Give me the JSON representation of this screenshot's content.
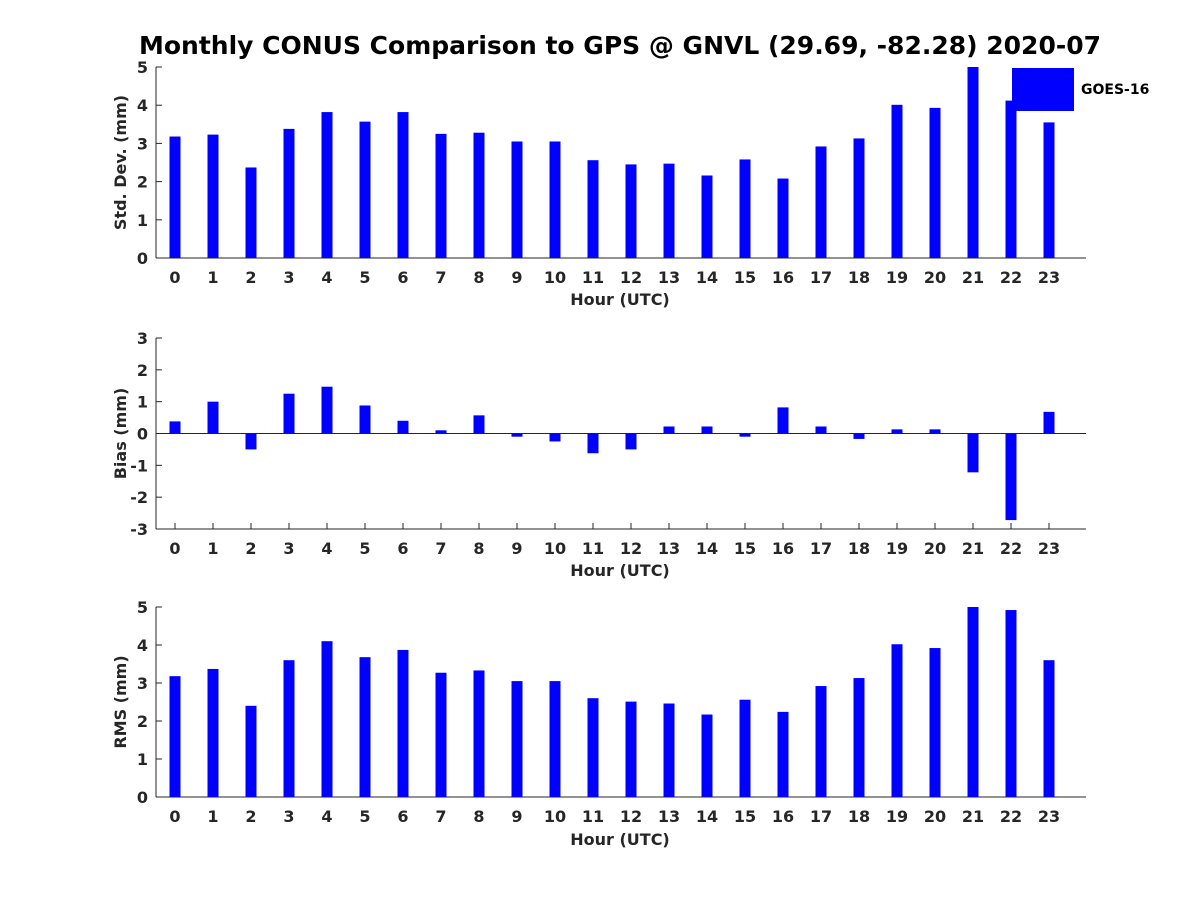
{
  "title": "Monthly CONUS Comparison to GPS @ GNVL (29.69, -82.28) 2020-07",
  "legend": {
    "label": "GOES-16",
    "color": "#0000ff",
    "placement": "top-right"
  },
  "chart_data": [
    {
      "type": "bar",
      "xlabel": "Hour (UTC)",
      "ylabel": "Std. Dev. (mm)",
      "ylim": [
        0,
        5
      ],
      "yticks": [
        0,
        1,
        2,
        3,
        4,
        5
      ],
      "categories": [
        "0",
        "1",
        "2",
        "3",
        "4",
        "5",
        "6",
        "7",
        "8",
        "9",
        "10",
        "11",
        "12",
        "13",
        "14",
        "15",
        "16",
        "17",
        "18",
        "19",
        "20",
        "21",
        "22",
        "23"
      ],
      "series": [
        {
          "name": "GOES-16",
          "color": "#0000ff",
          "values": [
            3.18,
            3.23,
            2.37,
            3.38,
            3.82,
            3.57,
            3.82,
            3.25,
            3.28,
            3.05,
            3.05,
            2.56,
            2.45,
            2.47,
            2.16,
            2.58,
            2.08,
            2.92,
            3.13,
            4.01,
            3.93,
            5.0,
            4.12,
            3.55
          ]
        }
      ],
      "grid": false
    },
    {
      "type": "bar",
      "xlabel": "Hour (UTC)",
      "ylabel": "Bias (mm)",
      "ylim": [
        -3,
        3
      ],
      "yticks": [
        -3,
        -2,
        -1,
        0,
        1,
        2,
        3
      ],
      "categories": [
        "0",
        "1",
        "2",
        "3",
        "4",
        "5",
        "6",
        "7",
        "8",
        "9",
        "10",
        "11",
        "12",
        "13",
        "14",
        "15",
        "16",
        "17",
        "18",
        "19",
        "20",
        "21",
        "22",
        "23"
      ],
      "series": [
        {
          "name": "GOES-16",
          "color": "#0000ff",
          "values": [
            0.38,
            1.0,
            -0.5,
            1.25,
            1.47,
            0.88,
            0.4,
            0.1,
            0.57,
            -0.1,
            -0.25,
            -0.62,
            -0.5,
            0.22,
            0.22,
            -0.1,
            0.82,
            0.22,
            -0.17,
            0.13,
            0.13,
            -1.22,
            -2.72,
            0.68
          ]
        }
      ],
      "zero_line": true,
      "grid": false
    },
    {
      "type": "bar",
      "xlabel": "Hour (UTC)",
      "ylabel": "RMS (mm)",
      "ylim": [
        0,
        5
      ],
      "yticks": [
        0,
        1,
        2,
        3,
        4,
        5
      ],
      "categories": [
        "0",
        "1",
        "2",
        "3",
        "4",
        "5",
        "6",
        "7",
        "8",
        "9",
        "10",
        "11",
        "12",
        "13",
        "14",
        "15",
        "16",
        "17",
        "18",
        "19",
        "20",
        "21",
        "22",
        "23"
      ],
      "series": [
        {
          "name": "GOES-16",
          "color": "#0000ff",
          "values": [
            3.18,
            3.37,
            2.4,
            3.6,
            4.1,
            3.68,
            3.87,
            3.27,
            3.33,
            3.05,
            3.05,
            2.6,
            2.51,
            2.46,
            2.17,
            2.56,
            2.24,
            2.92,
            3.13,
            4.02,
            3.92,
            5.0,
            4.92,
            3.6
          ]
        }
      ],
      "grid": false
    }
  ]
}
